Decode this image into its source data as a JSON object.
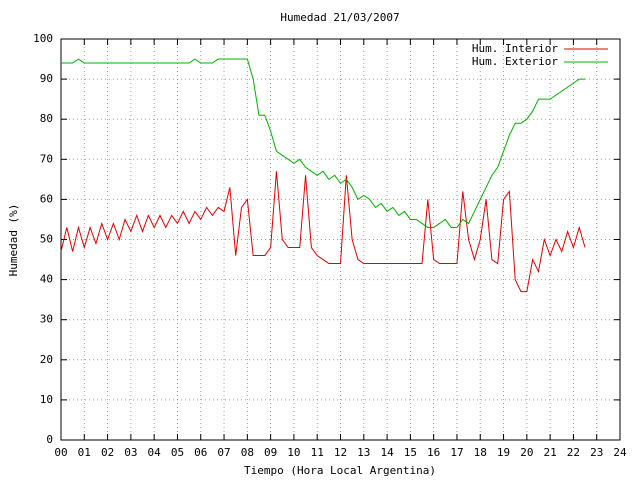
{
  "chart_data": {
    "type": "line",
    "title": "Humedad 21/03/2007",
    "x_label": "Tiempo (Hora Local Argentina)",
    "y_label": "Humedad (%)",
    "x": [
      0,
      0.25,
      0.5,
      0.75,
      1,
      1.25,
      1.5,
      1.75,
      2,
      2.25,
      2.5,
      2.75,
      3,
      3.25,
      3.5,
      3.75,
      4,
      4.25,
      4.5,
      4.75,
      5,
      5.25,
      5.5,
      5.75,
      6,
      6.25,
      6.5,
      6.75,
      7,
      7.25,
      7.5,
      7.75,
      8,
      8.25,
      8.5,
      8.75,
      9,
      9.25,
      9.5,
      9.75,
      10,
      10.25,
      10.5,
      10.75,
      11,
      11.25,
      11.5,
      11.75,
      12,
      12.25,
      12.5,
      12.75,
      13,
      13.25,
      13.5,
      13.75,
      14,
      14.25,
      14.5,
      14.75,
      15,
      15.25,
      15.5,
      15.75,
      16,
      16.25,
      16.5,
      16.75,
      17,
      17.25,
      17.5,
      17.75,
      18,
      18.25,
      18.5,
      18.75,
      19,
      19.25,
      19.5,
      19.75,
      20,
      20.25,
      20.5,
      20.75,
      21,
      21.25,
      21.5,
      21.75,
      22,
      22.25,
      22.5
    ],
    "series": [
      {
        "name": "Hum. Interior",
        "color": "#e00000",
        "values": [
          47,
          53,
          47,
          53,
          48,
          53,
          49,
          54,
          50,
          54,
          50,
          55,
          52,
          56,
          52,
          56,
          53,
          56,
          53,
          56,
          54,
          57,
          54,
          57,
          55,
          58,
          56,
          58,
          57,
          63,
          46,
          58,
          60,
          46,
          46,
          46,
          48,
          67,
          50,
          48,
          48,
          48,
          66,
          48,
          46,
          45,
          44,
          44,
          44,
          66,
          50,
          45,
          44,
          44,
          44,
          44,
          44,
          44,
          44,
          44,
          44,
          44,
          44,
          60,
          45,
          44,
          44,
          44,
          44,
          62,
          50,
          45,
          50,
          60,
          45,
          44,
          60,
          62,
          40,
          37,
          37,
          45,
          42,
          50,
          46,
          50,
          47,
          52,
          48,
          53,
          48
        ]
      },
      {
        "name": "Hum. Exterior",
        "color": "#00b000",
        "values": [
          94,
          94,
          94,
          95,
          94,
          94,
          94,
          94,
          94,
          94,
          94,
          94,
          94,
          94,
          94,
          94,
          94,
          94,
          94,
          94,
          94,
          94,
          94,
          95,
          94,
          94,
          94,
          95,
          95,
          95,
          95,
          95,
          95,
          90,
          81,
          81,
          77,
          72,
          71,
          70,
          69,
          70,
          68,
          67,
          66,
          67,
          65,
          66,
          64,
          65,
          63,
          60,
          61,
          60,
          58,
          59,
          57,
          58,
          56,
          57,
          55,
          55,
          54,
          53,
          53,
          54,
          55,
          53,
          53,
          55,
          54,
          57,
          60,
          63,
          66,
          68,
          72,
          76,
          79,
          79,
          80,
          82,
          85,
          85,
          85,
          86,
          87,
          88,
          89,
          90,
          90
        ]
      }
    ],
    "xlim": [
      0,
      24
    ],
    "xticks": [
      {
        "value": 0,
        "label": "00"
      },
      {
        "value": 1,
        "label": "01"
      },
      {
        "value": 2,
        "label": "02"
      },
      {
        "value": 3,
        "label": "03"
      },
      {
        "value": 4,
        "label": "04"
      },
      {
        "value": 5,
        "label": "05"
      },
      {
        "value": 6,
        "label": "06"
      },
      {
        "value": 7,
        "label": "07"
      },
      {
        "value": 8,
        "label": "08"
      },
      {
        "value": 9,
        "label": "09"
      },
      10,
      11,
      12,
      13,
      14,
      15,
      16,
      17,
      18,
      19,
      20,
      21,
      22,
      23,
      24
    ],
    "ylim": [
      0,
      100
    ],
    "yticks": [
      0,
      10,
      20,
      30,
      40,
      50,
      60,
      70,
      80,
      90,
      100
    ],
    "grid": true,
    "legend_position": "top right"
  }
}
